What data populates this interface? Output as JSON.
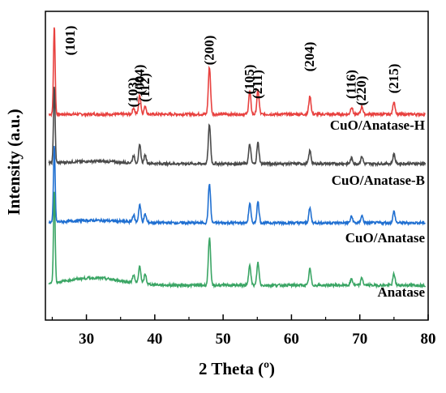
{
  "chart_data": {
    "type": "line",
    "title": "",
    "xlabel": "2 Theta (º)",
    "ylabel": "Intensity (a.u.)",
    "xlim": [
      24,
      80
    ],
    "x_ticks": [
      "30",
      "40",
      "50",
      "60",
      "70",
      "80"
    ],
    "x_tick_values": [
      30,
      40,
      50,
      60,
      70,
      80
    ],
    "y_ticks_shown": false,
    "grid": false,
    "peaks": [
      {
        "hkl": "(101)",
        "x": 25.3
      },
      {
        "hkl": "(103)",
        "x": 36.9
      },
      {
        "hkl": "(004)",
        "x": 37.8
      },
      {
        "hkl": "(112)",
        "x": 38.6
      },
      {
        "hkl": "(200)",
        "x": 48.0
      },
      {
        "hkl": "(105)",
        "x": 53.9
      },
      {
        "hkl": "(211)",
        "x": 55.1
      },
      {
        "hkl": "(204)",
        "x": 62.7
      },
      {
        "hkl": "(116)",
        "x": 68.8
      },
      {
        "hkl": "(220)",
        "x": 70.3
      },
      {
        "hkl": "(215)",
        "x": 75.0
      }
    ],
    "series": [
      {
        "name": "CuO/Anatase-H",
        "color": "#e8413f",
        "offset": 3,
        "peak_heights": [
          110,
          8,
          24,
          10,
          58,
          28,
          30,
          22,
          9,
          10,
          16
        ],
        "hump": 0
      },
      {
        "name": "CuO/Anatase-B",
        "color": "#4a4a4a",
        "offset": 2,
        "peak_heights": [
          95,
          9,
          22,
          10,
          48,
          24,
          26,
          16,
          7,
          9,
          12
        ],
        "hump": 3
      },
      {
        "name": "CuO/Anatase",
        "color": "#1f6fd1",
        "offset": 1,
        "peak_heights": [
          95,
          9,
          22,
          10,
          48,
          24,
          26,
          18,
          8,
          9,
          14
        ],
        "hump": 3
      },
      {
        "name": "Anatase",
        "color": "#3aa564",
        "offset": 0,
        "peak_heights": [
          115,
          10,
          22,
          12,
          58,
          26,
          28,
          20,
          8,
          9,
          14
        ],
        "hump": 9
      }
    ]
  }
}
